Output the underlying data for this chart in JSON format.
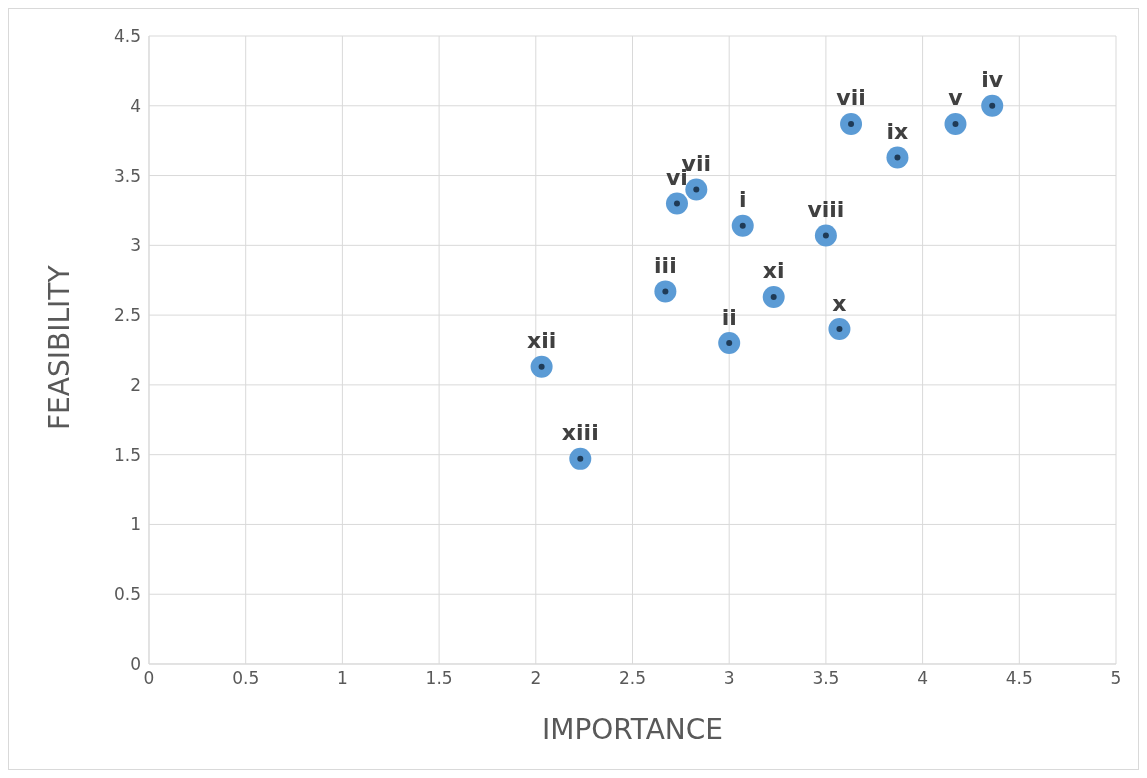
{
  "chart_data": {
    "type": "scatter",
    "xlabel": "IMPORTANCE",
    "ylabel": "FEASIBILITY",
    "x": [
      2.03,
      2.23,
      2.67,
      2.73,
      2.83,
      3.07,
      3.0,
      3.23,
      3.5,
      3.57,
      3.63,
      3.87,
      4.17,
      4.36
    ],
    "values": [
      2.13,
      1.47,
      2.67,
      3.3,
      3.4,
      3.14,
      2.3,
      2.63,
      3.07,
      2.4,
      3.87,
      3.63,
      3.87,
      4.0
    ],
    "value_labels": [
      "xii",
      "xiii",
      "iii",
      "vi",
      "vii",
      "i",
      "ii",
      "xi",
      "viii",
      "x",
      "vii",
      "ix",
      "v",
      "iv"
    ],
    "color": "#5b9bd5",
    "marker": "circle",
    "grid": true,
    "xlim": [
      0,
      5
    ],
    "xticks": [
      0,
      0.5,
      1,
      1.5,
      2,
      2.5,
      3,
      3.5,
      4,
      4.5,
      5
    ],
    "ylim": [
      0,
      4.5
    ],
    "yticks": [
      0,
      0.5,
      1,
      1.5,
      2,
      2.5,
      3,
      3.5,
      4,
      4.5
    ]
  }
}
